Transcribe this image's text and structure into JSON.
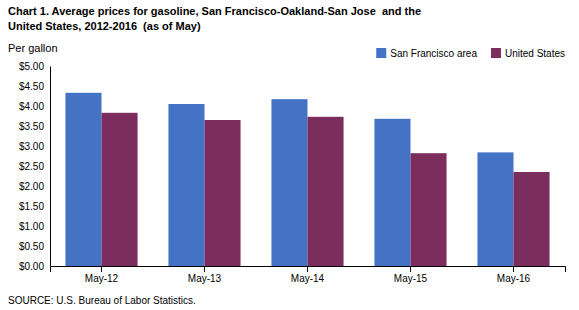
{
  "chart_data": {
    "type": "bar",
    "title": "Chart 1. Average prices for gasoline, San Francisco-Oakland-San Jose  and the",
    "subtitle": "United States, 2012-2016  (as of May)",
    "ylabel": "Per gallon",
    "source": "SOURCE: U.S. Bureau of Labor Statistics.",
    "categories": [
      "May-12",
      "May-13",
      "May-14",
      "May-15",
      "May-16"
    ],
    "series": [
      {
        "name": "San Francisco area",
        "color": "#4472C4",
        "values": [
          4.33,
          4.05,
          4.17,
          3.68,
          2.84
        ]
      },
      {
        "name": "United States",
        "color": "#7B2D5E",
        "values": [
          3.83,
          3.65,
          3.73,
          2.82,
          2.35
        ]
      }
    ],
    "ylim": [
      0,
      5.0
    ],
    "yticks": [
      {
        "value": 0.0,
        "label": "$0.00"
      },
      {
        "value": 0.5,
        "label": "$0.50"
      },
      {
        "value": 1.0,
        "label": "$1.00"
      },
      {
        "value": 1.5,
        "label": "$1.50"
      },
      {
        "value": 2.0,
        "label": "$2.00"
      },
      {
        "value": 2.5,
        "label": "$2.50"
      },
      {
        "value": 3.0,
        "label": "$3.00"
      },
      {
        "value": 3.5,
        "label": "$3.50"
      },
      {
        "value": 4.0,
        "label": "$4.00"
      },
      {
        "value": 4.5,
        "label": "$4.50"
      },
      {
        "value": 5.0,
        "label": "$5.00"
      }
    ],
    "legend": "upper right",
    "grid": false
  }
}
